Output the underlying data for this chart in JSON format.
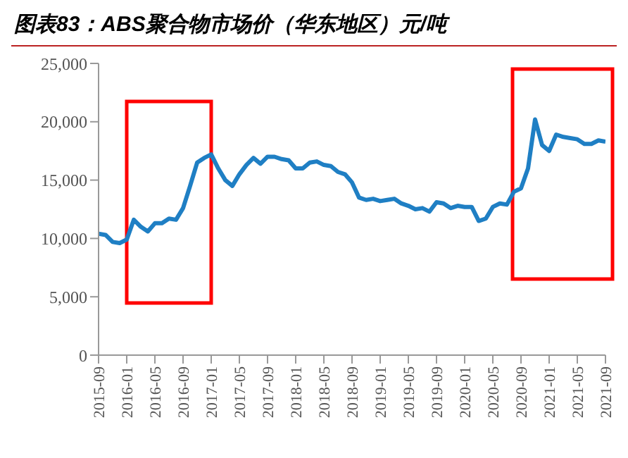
{
  "chart_data": {
    "type": "line",
    "title": "图表83：ABS聚合物市场价（华东地区）元/吨",
    "x": [
      "2015-09",
      "2015-10",
      "2015-11",
      "2015-12",
      "2016-01",
      "2016-02",
      "2016-03",
      "2016-04",
      "2016-05",
      "2016-06",
      "2016-07",
      "2016-08",
      "2016-09",
      "2016-10",
      "2016-11",
      "2016-12",
      "2017-01",
      "2017-02",
      "2017-03",
      "2017-04",
      "2017-05",
      "2017-06",
      "2017-07",
      "2017-08",
      "2017-09",
      "2017-10",
      "2017-11",
      "2017-12",
      "2018-01",
      "2018-02",
      "2018-03",
      "2018-04",
      "2018-05",
      "2018-06",
      "2018-07",
      "2018-08",
      "2018-09",
      "2018-10",
      "2018-11",
      "2018-12",
      "2019-01",
      "2019-02",
      "2019-03",
      "2019-04",
      "2019-05",
      "2019-06",
      "2019-07",
      "2019-08",
      "2019-09",
      "2019-10",
      "2019-11",
      "2019-12",
      "2020-01",
      "2020-02",
      "2020-03",
      "2020-04",
      "2020-05",
      "2020-06",
      "2020-07",
      "2020-08",
      "2020-09",
      "2020-10",
      "2020-11",
      "2020-12",
      "2021-01",
      "2021-02",
      "2021-03",
      "2021-04",
      "2021-05",
      "2021-06",
      "2021-07",
      "2021-08",
      "2021-09"
    ],
    "series": [
      {
        "color": "#1f7fc4",
        "values": [
          10400,
          10300,
          9700,
          9600,
          9900,
          11600,
          11000,
          10600,
          11300,
          11300,
          11700,
          11600,
          12600,
          14500,
          16500,
          16900,
          17200,
          16000,
          15000,
          14500,
          15500,
          16300,
          16900,
          16400,
          17000,
          17000,
          16800,
          16700,
          16000,
          16000,
          16500,
          16600,
          16300,
          16200,
          15700,
          15500,
          14800,
          13500,
          13300,
          13400,
          13200,
          13300,
          13400,
          13000,
          12800,
          12500,
          12600,
          12300,
          13100,
          13000,
          12600,
          12800,
          12700,
          12700,
          11500,
          11700,
          12700,
          13000,
          12900,
          14000,
          14300,
          16000,
          20200,
          18000,
          17500,
          18900,
          18700,
          18600,
          18500,
          18100,
          18100,
          18400,
          18300
        ]
      }
    ],
    "xlim": [
      "2015-09",
      "2021-09"
    ],
    "xticks": [
      "2015-09",
      "2016-01",
      "2016-05",
      "2016-09",
      "2017-01",
      "2017-05",
      "2017-09",
      "2018-01",
      "2018-05",
      "2018-09",
      "2019-01",
      "2019-05",
      "2019-09",
      "2020-01",
      "2020-05",
      "2020-09",
      "2021-01",
      "2021-05",
      "2021-09"
    ],
    "ylim": [
      0,
      25000
    ],
    "yticks": [
      {
        "value": 0,
        "label": "0"
      },
      {
        "value": 5000,
        "label": "5,000"
      },
      {
        "value": 10000,
        "label": "10,000"
      },
      {
        "value": 15000,
        "label": "15,000"
      },
      {
        "value": 20000,
        "label": "20,000"
      },
      {
        "value": 25000,
        "label": "25,000"
      }
    ],
    "grid": false,
    "legend": false,
    "marker": "none",
    "line_style": "solid"
  }
}
